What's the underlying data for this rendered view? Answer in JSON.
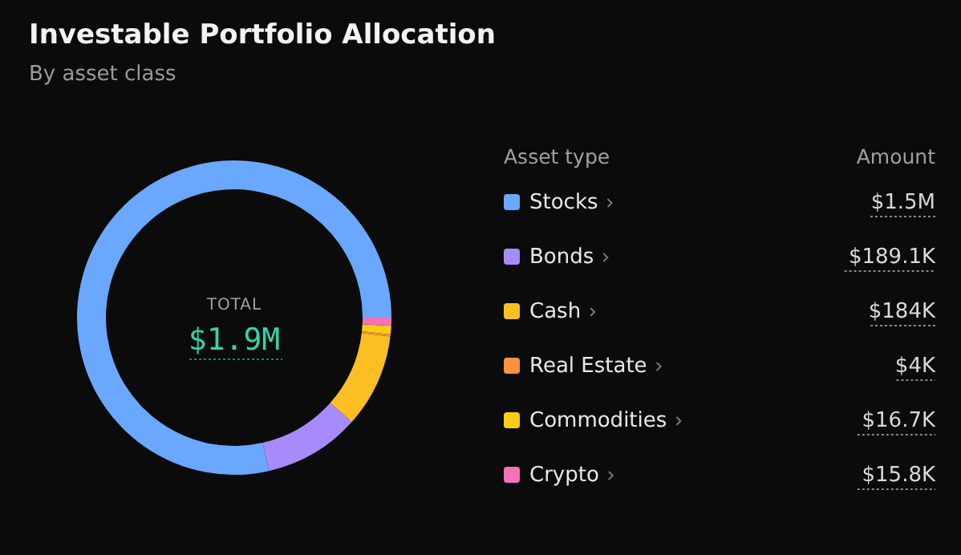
{
  "chart_data": {
    "type": "donut",
    "title": "Investable Portfolio Allocation",
    "subtitle": "By asset class",
    "legend_title": "Asset type",
    "legend": "right",
    "categories": [
      "Stocks",
      "Bonds",
      "Cash",
      "Real Estate",
      "Commodities",
      "Crypto"
    ],
    "values": [
      1500000,
      189100,
      184000,
      4000,
      16700,
      15800
    ],
    "value_labels": [
      "$1.5M",
      "$189.1K",
      "$184K",
      "$4K",
      "$16.7K",
      "$15.8K"
    ],
    "colors": [
      "#6aa8ff",
      "#a78bfa",
      "#fbbf24",
      "#fb923c",
      "#facc15",
      "#f472b6"
    ],
    "annotations": [
      "Amount",
      "TOTAL",
      "$1.9M"
    ]
  }
}
